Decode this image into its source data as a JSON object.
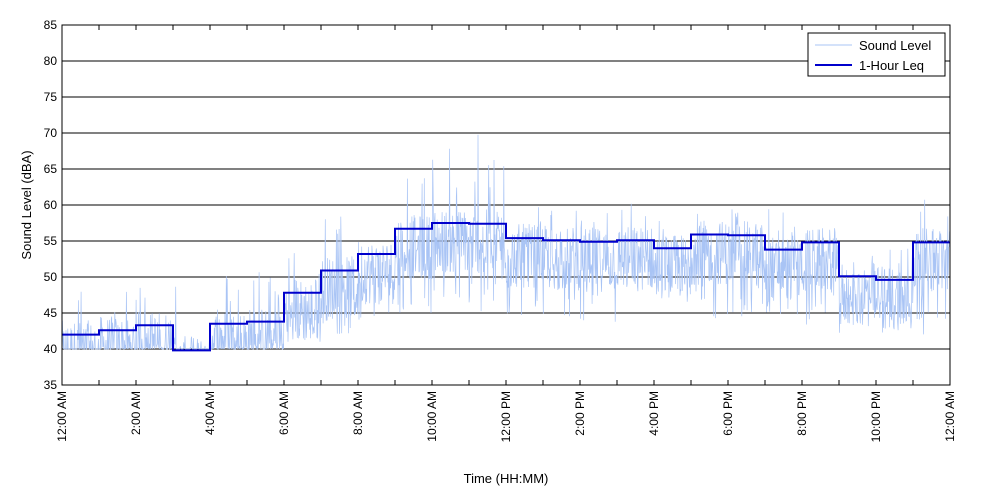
{
  "chart_data": {
    "type": "line",
    "title": "",
    "xlabel": "Time (HH:MM)",
    "ylabel": "Sound Level (dBA)",
    "ylim": [
      35,
      85
    ],
    "yticks": [
      35,
      40,
      45,
      50,
      55,
      60,
      65,
      70,
      75,
      80,
      85
    ],
    "xlim_hours": [
      0,
      24
    ],
    "xtick_labels": [
      "12:00 AM",
      "2:00 AM",
      "4:00 AM",
      "6:00 AM",
      "8:00 AM",
      "10:00 AM",
      "12:00 PM",
      "2:00 PM",
      "4:00 PM",
      "6:00 PM",
      "8:00 PM",
      "10:00 PM",
      "12:00 AM"
    ],
    "grid": "horizontal",
    "legend_placement": "top-right",
    "series": [
      {
        "name": "Sound Level",
        "color": "#a9c4f5",
        "style": "thin-noisy-line",
        "hourly_min": [
          40,
          40,
          40,
          40,
          40,
          40,
          41,
          42,
          43,
          45,
          44,
          44,
          44,
          44,
          43,
          43,
          43,
          43,
          44,
          44,
          43,
          42,
          42,
          42
        ],
        "hourly_max": [
          53,
          48,
          50,
          52,
          51,
          52,
          54,
          59,
          60,
          67,
          68,
          72,
          60,
          61,
          60,
          61,
          60,
          61,
          60,
          60,
          58,
          56,
          55,
          62
        ]
      },
      {
        "name": "1-Hour Leq",
        "color": "#0000cc",
        "style": "step",
        "hours": [
          0,
          1,
          2,
          3,
          4,
          5,
          6,
          7,
          8,
          9,
          10,
          11,
          12,
          13,
          14,
          15,
          16,
          17,
          18,
          19,
          20,
          21,
          22,
          23
        ],
        "values": [
          42.0,
          42.6,
          43.3,
          39.8,
          43.5,
          43.8,
          47.8,
          50.9,
          53.2,
          56.7,
          57.5,
          57.4,
          55.4,
          55.1,
          54.9,
          55.1,
          54.0,
          55.9,
          55.8,
          53.8,
          54.8,
          50.1,
          49.6,
          54.8
        ]
      }
    ]
  }
}
